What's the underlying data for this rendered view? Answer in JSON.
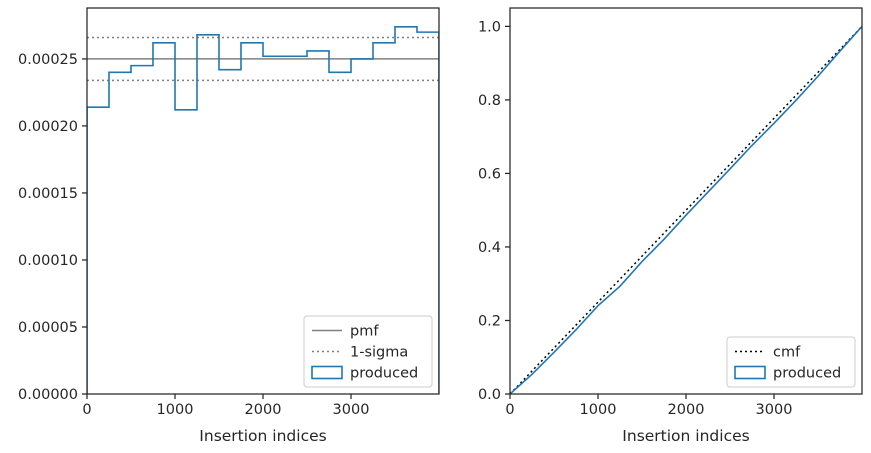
{
  "chart_data": [
    {
      "type": "histogram",
      "xlabel": "Insertion indices",
      "ylabel": "",
      "xlim": [
        0,
        4000
      ],
      "ylim": [
        0,
        0.000288
      ],
      "xticks": [
        0,
        1000,
        2000,
        3000
      ],
      "xtick_labels": [
        "0",
        "1000",
        "2000",
        "3000"
      ],
      "yticks": [
        0,
        5e-05,
        0.0001,
        0.00015,
        0.0002,
        0.00025
      ],
      "ytick_labels": [
        "0.00000",
        "0.00005",
        "0.00010",
        "0.00015",
        "0.00020",
        "0.00025"
      ],
      "bin_edges": [
        0,
        250,
        500,
        750,
        1000,
        1250,
        1500,
        1750,
        2000,
        2250,
        2500,
        2750,
        3000,
        3250,
        3500,
        3750,
        4000
      ],
      "series": [
        {
          "name": "produced",
          "style": "step",
          "color": "#1f77b4",
          "values": [
            0.000214,
            0.00024,
            0.000245,
            0.000262,
            0.000212,
            0.000268,
            0.000242,
            0.000262,
            0.000252,
            0.000252,
            0.000256,
            0.00024,
            0.00025,
            0.000262,
            0.000274,
            0.00027
          ]
        }
      ],
      "reference_lines": [
        {
          "name": "pmf",
          "y": 0.00025,
          "style": "solid",
          "color": "#808080"
        },
        {
          "name": "1-sigma",
          "y": [
            0.000234,
            0.000266
          ],
          "style": "dotted",
          "color": "#808080"
        }
      ],
      "legend": {
        "placement": "lower-right",
        "entries": [
          {
            "label": "pmf",
            "kind": "line-solid",
            "color": "#808080"
          },
          {
            "label": "1-sigma",
            "kind": "line-dotted",
            "color": "#808080"
          },
          {
            "label": "produced",
            "kind": "patch",
            "color": "#1f77b4"
          }
        ]
      }
    },
    {
      "type": "line",
      "xlabel": "Insertion indices",
      "ylabel": "",
      "xlim": [
        0,
        4000
      ],
      "ylim": [
        0,
        1.05
      ],
      "xticks": [
        0,
        1000,
        2000,
        3000
      ],
      "xtick_labels": [
        "0",
        "1000",
        "2000",
        "3000"
      ],
      "yticks": [
        0,
        0.2,
        0.4,
        0.6,
        0.8,
        1.0
      ],
      "ytick_labels": [
        "0.0",
        "0.2",
        "0.4",
        "0.6",
        "0.8",
        "1.0"
      ],
      "series": [
        {
          "name": "cmf",
          "style": "dotted",
          "color": "#000000",
          "x": [
            0,
            4000
          ],
          "y": [
            0,
            1.0
          ]
        },
        {
          "name": "produced",
          "style": "step",
          "color": "#1f77b4",
          "x": [
            0,
            250,
            500,
            750,
            1000,
            1250,
            1500,
            1750,
            2000,
            2250,
            2500,
            2750,
            3000,
            3250,
            3500,
            3750,
            4000
          ],
          "y": [
            0,
            0.0535,
            0.1135,
            0.1748,
            0.2403,
            0.2933,
            0.3603,
            0.4208,
            0.4863,
            0.5493,
            0.6123,
            0.6763,
            0.7363,
            0.7988,
            0.8643,
            0.9328,
            1.0
          ]
        }
      ],
      "legend": {
        "placement": "lower-right",
        "entries": [
          {
            "label": "cmf",
            "kind": "line-dotted",
            "color": "#000000"
          },
          {
            "label": "produced",
            "kind": "patch",
            "color": "#1f77b4"
          }
        ]
      }
    }
  ]
}
